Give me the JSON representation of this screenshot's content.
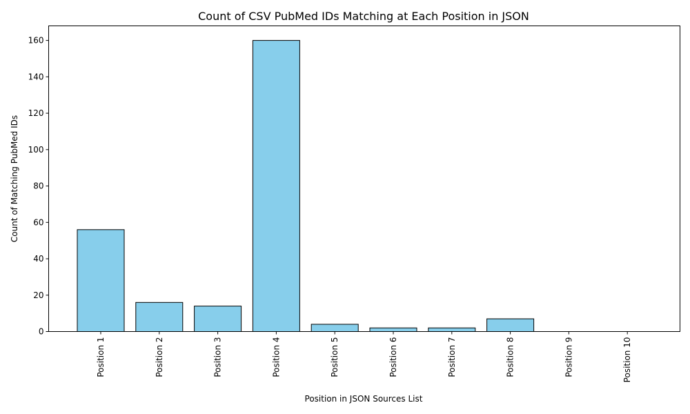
{
  "chart_data": {
    "type": "bar",
    "title": "Count of CSV PubMed IDs Matching at Each Position in JSON",
    "xlabel": "Position in JSON Sources List",
    "ylabel": "Count of Matching PubMed IDs",
    "categories": [
      "Position 1",
      "Position 2",
      "Position 3",
      "Position 4",
      "Position 5",
      "Position 6",
      "Position 7",
      "Position 8",
      "Position 9",
      "Position 10"
    ],
    "values": [
      56,
      16,
      14,
      160,
      4,
      2,
      2,
      7,
      0,
      0
    ],
    "ylim": [
      0,
      168
    ],
    "yticks": [
      0,
      20,
      40,
      60,
      80,
      100,
      120,
      140,
      160
    ],
    "bar_color": "#87ceeb",
    "edge_color": "#000000",
    "grid": false,
    "legend": "none"
  }
}
